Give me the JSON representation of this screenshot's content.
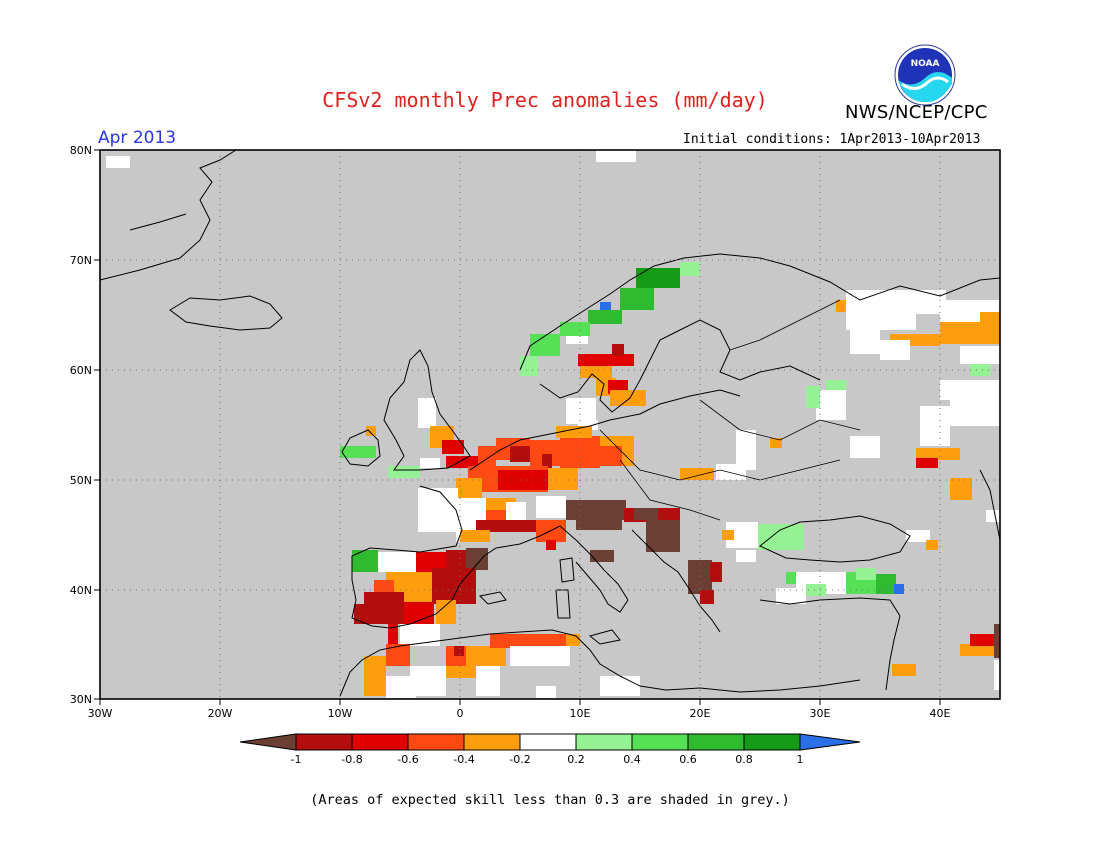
{
  "title": "CFSv2 monthly Prec anomalies (mm/day)",
  "agency": "NWS/NCEP/CPC",
  "logo_text": "NOAA",
  "period": "Apr 2013",
  "initial_conditions": "Initial conditions: 1Apr2013-10Apr2013",
  "footnote": "(Areas of expected skill less than 0.3 are shaded in grey.)",
  "axes": {
    "lat_labels": [
      "80N",
      "70N",
      "60N",
      "50N",
      "40N",
      "30N"
    ],
    "lon_labels": [
      "30W",
      "20W",
      "10W",
      "0",
      "10E",
      "20E",
      "30E",
      "40E"
    ]
  },
  "colorbar": {
    "labels": [
      "-1",
      "-0.8",
      "-0.6",
      "-0.4",
      "-0.2",
      "0.2",
      "0.4",
      "0.6",
      "0.8",
      "1"
    ],
    "colors": [
      "#6b3f33",
      "#b40d0d",
      "#e00000",
      "#ff4a14",
      "#ff9e0c",
      "#ffffff",
      "#94f294",
      "#55e055",
      "#2fbb2f",
      "#169b16",
      "#2b6fe8"
    ]
  },
  "map_colors": {
    "land_grey": "#c8c8c8",
    "ocean_grey": "#c8c8c8",
    "neutral": "#ffffff"
  }
}
